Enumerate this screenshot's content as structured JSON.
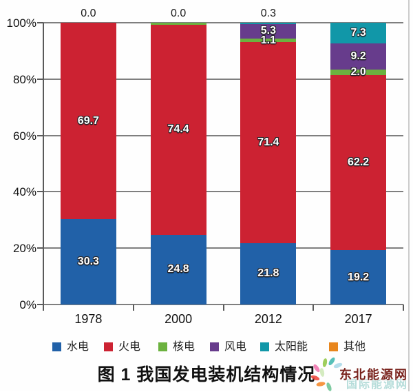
{
  "caption": "图 1  我国发电装机结构情况",
  "watermark": {
    "main_text": "东北能源网",
    "faint_text": "国际能源网"
  },
  "chart_data": {
    "type": "bar",
    "subtype": "stacked-percent-column",
    "title": "图 1  我国发电装机结构情况",
    "categories": [
      "1978",
      "2000",
      "2012",
      "2017"
    ],
    "series": [
      {
        "key": "hydro",
        "name": "水电",
        "color": "#2161a8",
        "values": [
          30.3,
          24.8,
          21.8,
          19.2
        ],
        "labels": [
          "30.3",
          "24.8",
          "21.8",
          "19.2"
        ]
      },
      {
        "key": "thermal",
        "name": "火电",
        "color": "#cc2232",
        "values": [
          69.7,
          74.4,
          71.4,
          62.2
        ],
        "labels": [
          "69.7",
          "74.4",
          "71.4",
          "62.2"
        ]
      },
      {
        "key": "nuclear",
        "name": "核电",
        "color": "#6cb23f",
        "values": [
          0.0,
          0.8,
          1.1,
          2.0
        ],
        "labels": [
          "",
          "",
          "1.1",
          "2.0"
        ]
      },
      {
        "key": "wind",
        "name": "风电",
        "color": "#673c8c",
        "values": [
          0.0,
          0.0,
          5.3,
          9.2
        ],
        "labels": [
          "",
          "",
          "5.3",
          "9.2"
        ]
      },
      {
        "key": "solar",
        "name": "太阳能",
        "color": "#1197a8",
        "values": [
          0.0,
          0.0,
          0.3,
          7.3
        ],
        "labels": [
          "",
          "",
          "",
          "7.3"
        ]
      },
      {
        "key": "other",
        "name": "其他",
        "color": "#e8861d",
        "values": [
          0.0,
          0.0,
          0.0,
          0.0
        ],
        "labels": [
          "",
          "",
          "",
          ""
        ]
      }
    ],
    "above_bar_labels": [
      "0.0",
      "0.0",
      "0.3",
      ""
    ],
    "y_ticks": [
      "100%",
      "80%",
      "60%",
      "40%",
      "20%",
      "0%"
    ],
    "ylim": [
      0,
      100
    ],
    "grid": true,
    "legend_position": "bottom",
    "axis_color": "#5a5a5a",
    "gridline_color": "#7f7f7f"
  }
}
